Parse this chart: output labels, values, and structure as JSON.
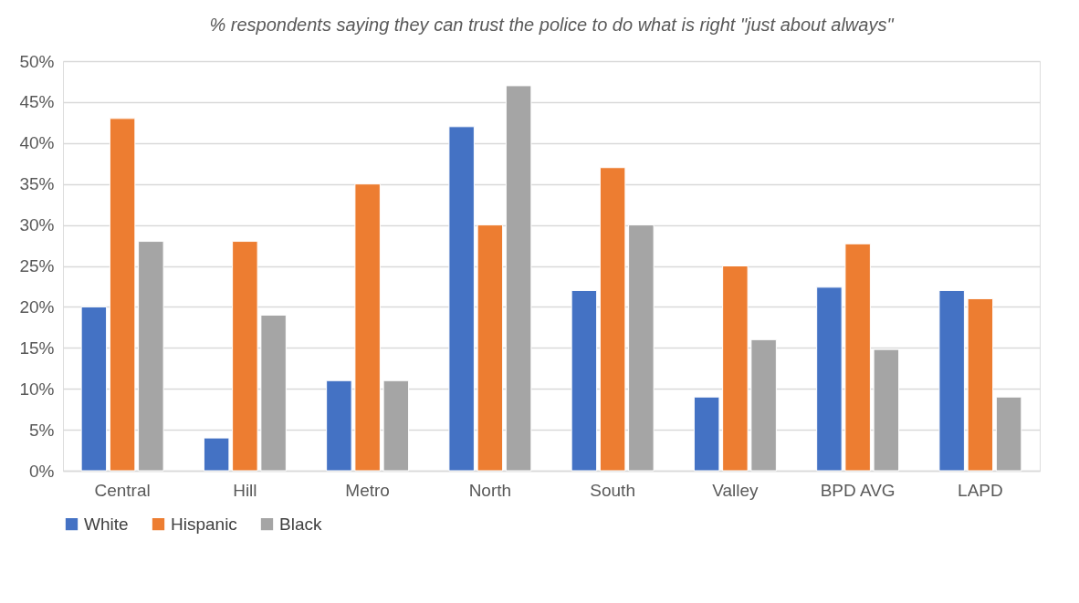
{
  "chart_data": {
    "type": "bar",
    "title": "% respondents saying they can trust the police to do what is right \"just about always\"",
    "categories": [
      "Central",
      "Hill",
      "Metro",
      "North",
      "South",
      "Valley",
      "BPD AVG",
      "LAPD"
    ],
    "series": [
      {
        "name": "White",
        "color": "#4472c4",
        "values": [
          20,
          4,
          11,
          42,
          22,
          9,
          22.4,
          22
        ]
      },
      {
        "name": "Hispanic",
        "color": "#ed7d31",
        "values": [
          43,
          28,
          35,
          30,
          37,
          25,
          27.7,
          21
        ]
      },
      {
        "name": "Black",
        "color": "#a5a5a5",
        "values": [
          28,
          19,
          11,
          47,
          30,
          16,
          14.8,
          9
        ]
      }
    ],
    "ylim": [
      0,
      50
    ],
    "yticks": [
      {
        "value": 0,
        "label": "0%"
      },
      {
        "value": 5,
        "label": "5%"
      },
      {
        "value": 10,
        "label": "10%"
      },
      {
        "value": 15,
        "label": "15%"
      },
      {
        "value": 20,
        "label": "20%"
      },
      {
        "value": 25,
        "label": "25%"
      },
      {
        "value": 30,
        "label": "30%"
      },
      {
        "value": 35,
        "label": "35%"
      },
      {
        "value": 40,
        "label": "40%"
      },
      {
        "value": 45,
        "label": "45%"
      },
      {
        "value": 50,
        "label": "50%"
      }
    ],
    "grid": "y",
    "legend": "bottom"
  }
}
